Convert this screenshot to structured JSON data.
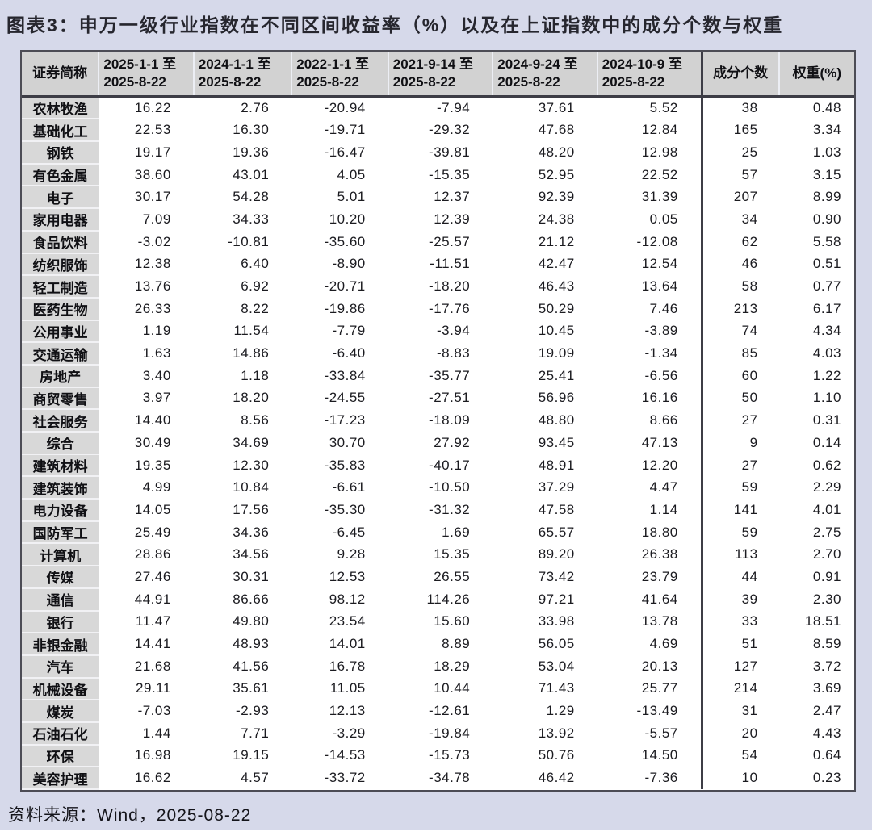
{
  "title": "图表3：申万一级行业指数在不同区间收益率（%）以及在上证指数中的成分个数与权重",
  "source": "资料来源：Wind，2025-08-22",
  "chart_data": {
    "type": "table",
    "title": "图表3：申万一级行业指数在不同区间收益率（%）以及在上证指数中的成分个数与权重",
    "columns": [
      "证券简称",
      "2025-1-1 至\n2025-8-22",
      "2024-1-1 至\n2025-8-22",
      "2022-1-1 至\n2025-8-22",
      "2021-9-14 至\n2025-8-22",
      "2024-9-24 至\n2025-8-22",
      "2024-10-9 至\n2025-8-22",
      "成分个数",
      "权重(%)"
    ],
    "rows": [
      [
        "农林牧渔",
        "16.22",
        "2.76",
        "-20.94",
        "-7.94",
        "37.61",
        "5.52",
        "38",
        "0.48"
      ],
      [
        "基础化工",
        "22.53",
        "16.30",
        "-19.71",
        "-29.32",
        "47.68",
        "12.84",
        "165",
        "3.34"
      ],
      [
        "钢铁",
        "19.17",
        "19.36",
        "-16.47",
        "-39.81",
        "48.20",
        "12.98",
        "25",
        "1.03"
      ],
      [
        "有色金属",
        "38.60",
        "43.01",
        "4.05",
        "-15.35",
        "52.95",
        "22.52",
        "57",
        "3.15"
      ],
      [
        "电子",
        "30.17",
        "54.28",
        "5.01",
        "12.37",
        "92.39",
        "31.39",
        "207",
        "8.99"
      ],
      [
        "家用电器",
        "7.09",
        "34.33",
        "10.20",
        "12.39",
        "24.38",
        "0.05",
        "34",
        "0.90"
      ],
      [
        "食品饮料",
        "-3.02",
        "-10.81",
        "-35.60",
        "-25.57",
        "21.12",
        "-12.08",
        "62",
        "5.58"
      ],
      [
        "纺织服饰",
        "12.38",
        "6.40",
        "-8.90",
        "-11.51",
        "42.47",
        "12.54",
        "46",
        "0.51"
      ],
      [
        "轻工制造",
        "13.76",
        "6.92",
        "-20.71",
        "-18.20",
        "46.43",
        "13.64",
        "58",
        "0.77"
      ],
      [
        "医药生物",
        "26.33",
        "8.22",
        "-19.86",
        "-17.76",
        "50.29",
        "7.46",
        "213",
        "6.17"
      ],
      [
        "公用事业",
        "1.19",
        "11.54",
        "-7.79",
        "-3.94",
        "10.45",
        "-3.89",
        "74",
        "4.34"
      ],
      [
        "交通运输",
        "1.63",
        "14.86",
        "-6.40",
        "-8.83",
        "19.09",
        "-1.34",
        "85",
        "4.03"
      ],
      [
        "房地产",
        "3.40",
        "1.18",
        "-33.84",
        "-35.77",
        "25.41",
        "-6.56",
        "60",
        "1.22"
      ],
      [
        "商贸零售",
        "3.97",
        "18.20",
        "-24.55",
        "-27.51",
        "56.96",
        "16.16",
        "50",
        "1.10"
      ],
      [
        "社会服务",
        "14.40",
        "8.56",
        "-17.23",
        "-18.09",
        "48.80",
        "8.66",
        "27",
        "0.31"
      ],
      [
        "综合",
        "30.49",
        "34.69",
        "30.70",
        "27.92",
        "93.45",
        "47.13",
        "9",
        "0.14"
      ],
      [
        "建筑材料",
        "19.35",
        "12.30",
        "-35.83",
        "-40.17",
        "48.91",
        "12.20",
        "27",
        "0.62"
      ],
      [
        "建筑装饰",
        "4.99",
        "10.84",
        "-6.61",
        "-10.50",
        "37.29",
        "4.47",
        "59",
        "2.29"
      ],
      [
        "电力设备",
        "14.05",
        "17.56",
        "-35.30",
        "-31.32",
        "47.58",
        "1.14",
        "141",
        "4.01"
      ],
      [
        "国防军工",
        "25.49",
        "34.36",
        "-6.45",
        "1.69",
        "65.57",
        "18.80",
        "59",
        "2.75"
      ],
      [
        "计算机",
        "28.86",
        "34.56",
        "9.28",
        "15.35",
        "89.20",
        "26.38",
        "113",
        "2.70"
      ],
      [
        "传媒",
        "27.46",
        "30.31",
        "12.53",
        "26.55",
        "73.42",
        "23.79",
        "44",
        "0.91"
      ],
      [
        "通信",
        "44.91",
        "86.66",
        "98.12",
        "114.26",
        "97.21",
        "41.64",
        "39",
        "2.30"
      ],
      [
        "银行",
        "11.47",
        "49.80",
        "23.54",
        "15.60",
        "33.98",
        "13.78",
        "33",
        "18.51"
      ],
      [
        "非银金融",
        "14.41",
        "48.93",
        "14.01",
        "8.89",
        "56.05",
        "4.69",
        "51",
        "8.59"
      ],
      [
        "汽车",
        "21.68",
        "41.56",
        "16.78",
        "18.29",
        "53.04",
        "20.13",
        "127",
        "3.72"
      ],
      [
        "机械设备",
        "29.11",
        "35.61",
        "11.05",
        "10.44",
        "71.43",
        "25.77",
        "214",
        "3.69"
      ],
      [
        "煤炭",
        "-7.03",
        "-2.93",
        "12.13",
        "-12.61",
        "1.29",
        "-13.49",
        "31",
        "2.47"
      ],
      [
        "石油石化",
        "1.44",
        "7.71",
        "-3.29",
        "-19.84",
        "13.92",
        "-5.57",
        "20",
        "4.43"
      ],
      [
        "环保",
        "16.98",
        "19.15",
        "-14.53",
        "-15.73",
        "50.76",
        "14.50",
        "54",
        "0.64"
      ],
      [
        "美容护理",
        "16.62",
        "4.57",
        "-33.72",
        "-34.78",
        "46.42",
        "-7.36",
        "10",
        "0.23"
      ]
    ]
  }
}
